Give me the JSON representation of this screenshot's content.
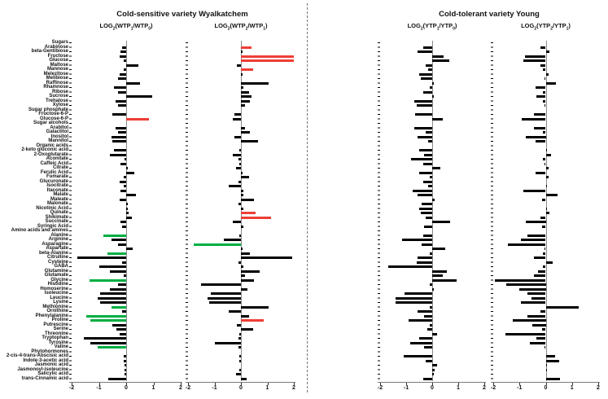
{
  "figure_type": "metabolite-log2-fold-change-bar-panels",
  "chart_data": {
    "type": "bar",
    "orientation": "horizontal",
    "grid": false,
    "legend": "none",
    "xlim": [
      -2,
      2
    ],
    "xticks": [
      -2,
      -1,
      0,
      1,
      2
    ],
    "group_titles": [
      "Cold-sensitive variety Wyalkatchem",
      "Cold-tolerant variety Young"
    ],
    "palette": {
      "k": "#000000",
      "r": "#ee3e36",
      "g": "#00ae42"
    },
    "category_row_indexes": [
      0,
      15,
      18,
      23,
      42,
      69
    ],
    "panel_titles": [
      [
        {
          "t": "LOG"
        },
        {
          "t": "2",
          "sub": true
        },
        {
          "t": "(WTP"
        },
        {
          "t": "1",
          "sub": true
        },
        {
          "t": "/WTP"
        },
        {
          "t": "0",
          "sub": true
        },
        {
          "t": ")"
        }
      ],
      [
        {
          "t": "LOG"
        },
        {
          "t": "2",
          "sub": true
        },
        {
          "t": "(WTP"
        },
        {
          "t": "2",
          "sub": true
        },
        {
          "t": "/WTP"
        },
        {
          "t": "1",
          "sub": true
        },
        {
          "t": ")"
        }
      ],
      [
        {
          "t": "LOG"
        },
        {
          "t": "2",
          "sub": true
        },
        {
          "t": "(YTP"
        },
        {
          "t": "1",
          "sub": true
        },
        {
          "t": "/YTP"
        },
        {
          "t": "0",
          "sub": true
        },
        {
          "t": ")"
        }
      ],
      [
        {
          "t": "LOG"
        },
        {
          "t": "2",
          "sub": true
        },
        {
          "t": "(YTP"
        },
        {
          "t": "2",
          "sub": true
        },
        {
          "t": "/YTP"
        },
        {
          "t": "1",
          "sub": true
        },
        {
          "t": ")"
        }
      ]
    ],
    "categories": [
      "Sugars",
      "Arabinose",
      "beta-Gentibiose",
      "Fructose",
      "Glucose",
      "Maltose",
      "Mannose",
      "Melezitose",
      "Melibiose",
      "Raffinose",
      "Rhamnose",
      "Ribose",
      "Sucrose",
      "Trehalose",
      "Xylose",
      "Sugar phosphate",
      "Fructose-6-P",
      "Glucose-6-P",
      "Sugar alcohols",
      "Arabitol",
      "Galactitol",
      "Inositol",
      "Mannitol",
      "Organic acids",
      "2-keto gluconic acid",
      "2-Oxoglutarate",
      "Aconitate",
      "Caffeic Acid",
      "Citrate",
      "Ferulic Acid",
      "Fumarate",
      "Glucuronate",
      "Isocitrate",
      "Itaconate",
      "Malate",
      "Maleate",
      "Malonate",
      "Nicotinic Acid",
      "Quinate",
      "Shikimate",
      "Succinate",
      "Syringic Acid",
      "Amino acids and amines",
      "Alanine",
      "Arginine",
      "Asparagine",
      "Aspartate",
      "beta-Alanine",
      "Citrulline",
      "Cysteine",
      "GABA",
      "Glutamine",
      "Glutamate",
      "Glycine",
      "Histidine",
      "Homoserine",
      "Isoleucine",
      "Leucine",
      "Lysine",
      "Methionine",
      "Ornithine",
      "Phenylalanine",
      "Proline",
      "Putrescine",
      "Serine",
      "Threonine",
      "Tryptophan",
      "Tyrosine",
      "Valine",
      "Phytohormones",
      "2-cis-4-trans-Abscisic acid",
      "Indole-3-acetic acid",
      "Jasmonic acid",
      "Jasmonoyl-isoleucine",
      "Salicylic acid",
      "trans-Cinnamic acid"
    ],
    "series": [
      {
        "name": "LOG2(WTP1/WTP0)",
        "values": [
          0,
          -0.15,
          -0.2,
          -0.25,
          -0.1,
          0.45,
          -0.1,
          -0.25,
          -0.3,
          0.5,
          -0.45,
          -0.3,
          0.95,
          -0.4,
          -0.3,
          0,
          -0.5,
          0.85,
          0,
          -0.4,
          -0.3,
          -0.55,
          -0.5,
          0,
          -0.45,
          -0.6,
          -0.05,
          -0.2,
          0.05,
          0.3,
          -0.1,
          -0.25,
          -0.1,
          -0.2,
          0.35,
          -0.25,
          0.05,
          0.05,
          0.1,
          0.2,
          -0.2,
          -0.15,
          0,
          -0.85,
          -0.55,
          -0.3,
          0.25,
          -0.7,
          -1.8,
          -0.15,
          -1.0,
          -0.6,
          -0.1,
          -1.35,
          -0.3,
          -0.6,
          -0.95,
          -1.05,
          -0.95,
          -0.55,
          -0.15,
          -1.45,
          -1.3,
          -0.5,
          -0.35,
          -0.25,
          -1.55,
          -1.3,
          -1.05,
          0,
          -0.1,
          -0.1,
          -0.05,
          -0.05,
          -0.05,
          -0.65
        ],
        "colors": {
          "17": "r",
          "43": "g",
          "47": "g",
          "53": "g",
          "59": "g",
          "61": "g",
          "62": "g",
          "68": "g"
        }
      },
      {
        "name": "LOG2(WTP2/WTP1)",
        "values": [
          0,
          0.4,
          0.05,
          2.0,
          2.0,
          -0.15,
          0.45,
          0.05,
          0,
          1.05,
          0.1,
          0.3,
          0.4,
          0.35,
          0.15,
          0,
          -0.25,
          -0.3,
          0,
          0.15,
          0.35,
          -0.25,
          0.65,
          0,
          -0.05,
          -0.3,
          -0.1,
          -0.05,
          -0.2,
          0.05,
          0.3,
          -0.1,
          -0.45,
          0.1,
          0.1,
          0.5,
          -0.1,
          0.1,
          0.55,
          1.15,
          -0.3,
          0.1,
          0,
          -0.05,
          -0.65,
          -1.8,
          0.05,
          0.35,
          1.95,
          -0.1,
          0.1,
          0.7,
          0.15,
          0.5,
          -1.5,
          0.25,
          -1.15,
          -1.25,
          -1.2,
          1.05,
          -0.45,
          0.3,
          0.85,
          -0.15,
          0.45,
          -0.05,
          -0.1,
          -1.0,
          -0.1,
          0,
          -0.05,
          -0.05,
          0,
          -0.05,
          -0.2,
          0.2
        ],
        "colors": {
          "1": "r",
          "3": "r",
          "4": "r",
          "6": "r",
          "38": "r",
          "39": "r",
          "45": "g",
          "62": "r"
        }
      },
      {
        "name": "LOG2(YTP1/YTP0)",
        "values": [
          0,
          -0.35,
          -0.55,
          0.45,
          0.65,
          -0.25,
          -0.15,
          -0.5,
          -0.45,
          0.05,
          -0.1,
          -0.35,
          0.05,
          -0.7,
          -0.6,
          0,
          -0.65,
          0.4,
          0,
          -0.7,
          -0.25,
          -0.55,
          -0.15,
          0,
          -0.5,
          -0.3,
          -0.8,
          -0.35,
          0.3,
          -0.5,
          -0.1,
          -0.35,
          -0.15,
          -0.75,
          -0.55,
          0.1,
          -0.4,
          -0.5,
          -0.45,
          -0.25,
          0.7,
          -0.3,
          0,
          -0.35,
          -1.15,
          -0.4,
          0.5,
          -0.1,
          -0.55,
          -0.6,
          -1.7,
          0.55,
          0.4,
          0.95,
          -0.1,
          0.05,
          -1.05,
          -1.4,
          -1.4,
          -0.1,
          -0.55,
          -0.3,
          -0.9,
          -0.1,
          -0.2,
          0.2,
          -0.5,
          -0.85,
          -0.3,
          0,
          -1.1,
          -0.25,
          0.2,
          0.1,
          0.05,
          -0.35
        ],
        "colors": {}
      },
      {
        "name": "LOG2(YTP2/YTP1)",
        "values": [
          0,
          -0.2,
          0.15,
          -0.8,
          -0.85,
          -0.2,
          -0.1,
          0.1,
          -0.05,
          0.4,
          -0.4,
          -0.1,
          -0.35,
          -0.1,
          -0.05,
          0,
          -0.45,
          -0.9,
          0,
          -0.45,
          -0.1,
          -0.75,
          -0.4,
          0,
          0.05,
          0.2,
          -0.1,
          -0.05,
          0.1,
          -0.4,
          0.1,
          0,
          0.05,
          -0.85,
          0.45,
          -0.15,
          0,
          0.05,
          0.15,
          -0.2,
          -0.75,
          -0.15,
          0,
          -0.7,
          -0.95,
          -1.45,
          -0.05,
          -0.1,
          -0.45,
          0.25,
          -0.1,
          -0.3,
          -0.45,
          -1.95,
          -1.5,
          -1.0,
          -0.7,
          -0.55,
          -0.95,
          1.25,
          -0.2,
          -0.7,
          -1.25,
          -0.5,
          -0.15,
          -1.55,
          -0.35,
          -0.6,
          -0.05,
          0,
          0.35,
          0.5,
          0.05,
          0.05,
          0,
          0.55
        ],
        "colors": {}
      }
    ]
  }
}
